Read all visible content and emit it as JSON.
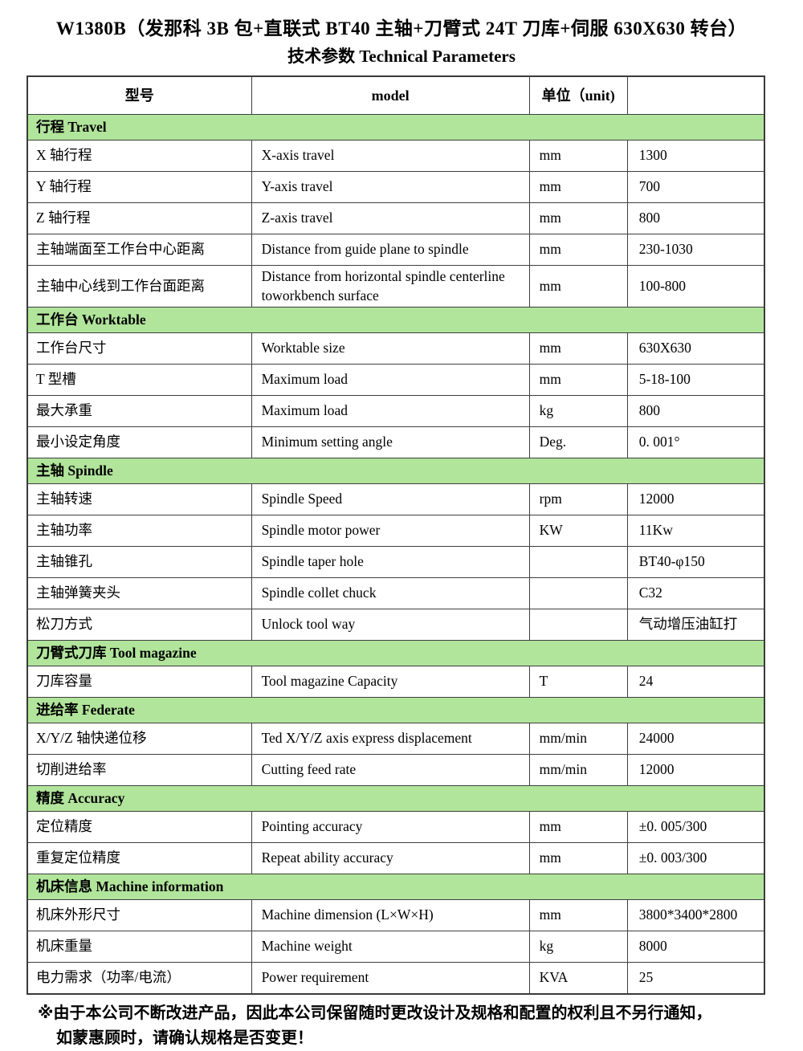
{
  "title": "W1380B（发那科 3B 包+直联式 BT40 主轴+刀臂式 24T 刀库+伺服 630X630 转台）",
  "subtitle": "技术参数 Technical Parameters",
  "colors": {
    "section_header_bg": "#b1e59b",
    "table_border": "#3f3f3f",
    "text": "#000000"
  },
  "table": {
    "headers": [
      "型号",
      "model",
      "单位（unit)",
      ""
    ],
    "column_widths_pct": [
      30.4,
      37.7,
      13.3,
      18.6
    ],
    "sections": [
      {
        "header": "行程 Travel",
        "rows": [
          [
            "X 轴行程",
            "X-axis travel",
            "mm",
            "1300"
          ],
          [
            "Y 轴行程",
            "Y-axis travel",
            "mm",
            "700"
          ],
          [
            "Z 轴行程",
            "Z-axis travel",
            "mm",
            "800"
          ],
          [
            "主轴端面至工作台中心距离",
            "Distance from guide plane to spindle",
            "mm",
            "230-1030"
          ],
          [
            "主轴中心线到工作台面距离",
            "Distance from horizontal spindle centerline toworkbench surface",
            "mm",
            "100-800"
          ]
        ]
      },
      {
        "header": "工作台 Worktable",
        "rows": [
          [
            "工作台尺寸",
            "Worktable size",
            "mm",
            "630X630"
          ],
          [
            "T 型槽",
            "Maximum load",
            "mm",
            "5-18-100"
          ],
          [
            "最大承重",
            "Maximum load",
            "kg",
            "800"
          ],
          [
            "最小设定角度",
            "Minimum setting angle",
            "Deg.",
            "0. 001°"
          ]
        ]
      },
      {
        "header": "主轴 Spindle",
        "rows": [
          [
            "主轴转速",
            "Spindle Speed",
            "rpm",
            "12000"
          ],
          [
            "主轴功率",
            "Spindle motor power",
            "KW",
            "11Kw"
          ],
          [
            "主轴锥孔",
            "Spindle taper hole",
            "",
            "BT40-φ150"
          ],
          [
            "主轴弹簧夹头",
            "Spindle collet chuck",
            "",
            "C32"
          ],
          [
            "松刀方式",
            "Unlock tool way",
            "",
            "气动增压油缸打"
          ]
        ]
      },
      {
        "header": "刀臂式刀库 Tool magazine",
        "rows": [
          [
            "刀库容量",
            "Tool magazine Capacity",
            "T",
            "24"
          ]
        ]
      },
      {
        "header": "进给率 Federate",
        "rows": [
          [
            "X/Y/Z 轴快递位移",
            "Ted X/Y/Z axis express displacement",
            "mm/min",
            "24000"
          ],
          [
            "切削进给率",
            "Cutting feed rate",
            "mm/min",
            "12000"
          ]
        ]
      },
      {
        "header": "精度 Accuracy",
        "rows": [
          [
            "定位精度",
            "Pointing accuracy",
            "mm",
            "±0. 005/300"
          ],
          [
            "重复定位精度",
            "Repeat ability accuracy",
            "mm",
            "±0. 003/300"
          ]
        ]
      },
      {
        "header": "机床信息 Machine information",
        "rows": [
          [
            "机床外形尺寸",
            "Machine dimension (L×W×H)",
            "mm",
            "3800*3400*2800"
          ],
          [
            "机床重量",
            "Machine weight",
            "kg",
            "8000"
          ],
          [
            "电力需求（功率/电流）",
            "Power requirement",
            "KVA",
            "25"
          ]
        ]
      }
    ]
  },
  "footnote": {
    "line1": "※由于本公司不断改进产品，因此本公司保留随时更改设计及规格和配置的权利且不另行通知，",
    "line2": "如蒙惠顾时，请确认规格是否变更！"
  }
}
